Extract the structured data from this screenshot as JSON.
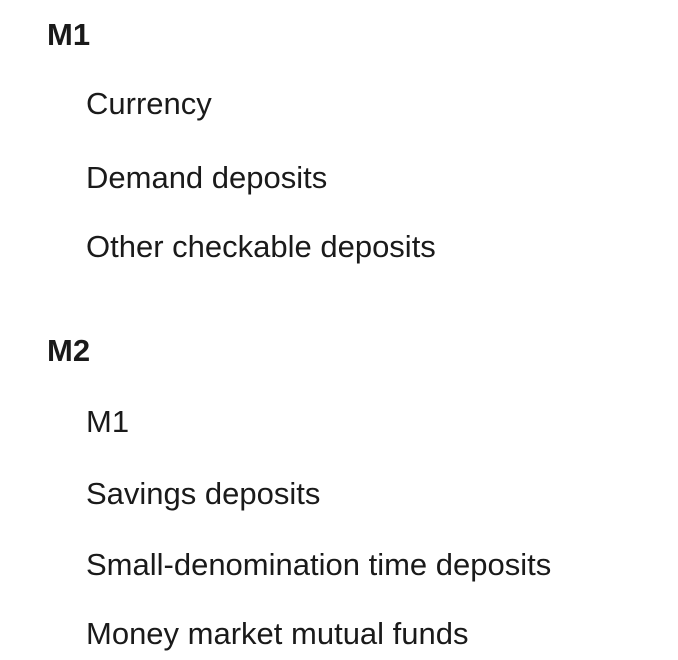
{
  "sections": [
    {
      "heading": "M1",
      "items": [
        "Currency",
        "Demand deposits",
        "Other checkable deposits"
      ]
    },
    {
      "heading": "M2",
      "items": [
        "M1",
        "Savings deposits",
        "Small-denomination time deposits",
        "Money market mutual funds"
      ]
    }
  ]
}
